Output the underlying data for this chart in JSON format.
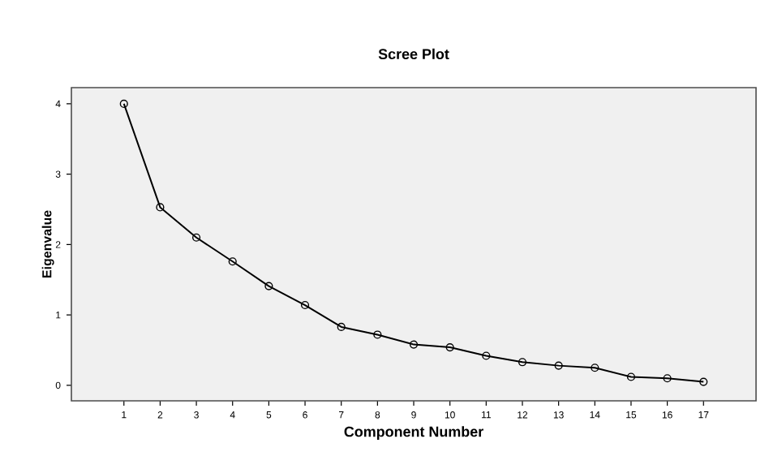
{
  "chart_data": {
    "type": "line",
    "title": "Scree Plot",
    "xlabel": "Component Number",
    "ylabel": "Eigenvalue",
    "x": [
      1,
      2,
      3,
      4,
      5,
      6,
      7,
      8,
      9,
      10,
      11,
      12,
      13,
      14,
      15,
      16,
      17
    ],
    "series": [
      {
        "color": "#000000",
        "values": [
          4.0,
          2.53,
          2.1,
          1.76,
          1.41,
          1.14,
          0.83,
          0.72,
          0.58,
          0.54,
          0.42,
          0.33,
          0.28,
          0.25,
          0.12,
          0.1,
          0.05
        ]
      }
    ],
    "xlim": [
      -0.45,
      18.45
    ],
    "ylim": [
      -0.22,
      4.23
    ],
    "xticks": [
      1,
      2,
      3,
      4,
      5,
      6,
      7,
      8,
      9,
      10,
      11,
      12,
      13,
      14,
      15,
      16,
      17
    ],
    "yticks": [
      0,
      1,
      2,
      3,
      4
    ],
    "marker": "circle",
    "line_style": "solid"
  }
}
